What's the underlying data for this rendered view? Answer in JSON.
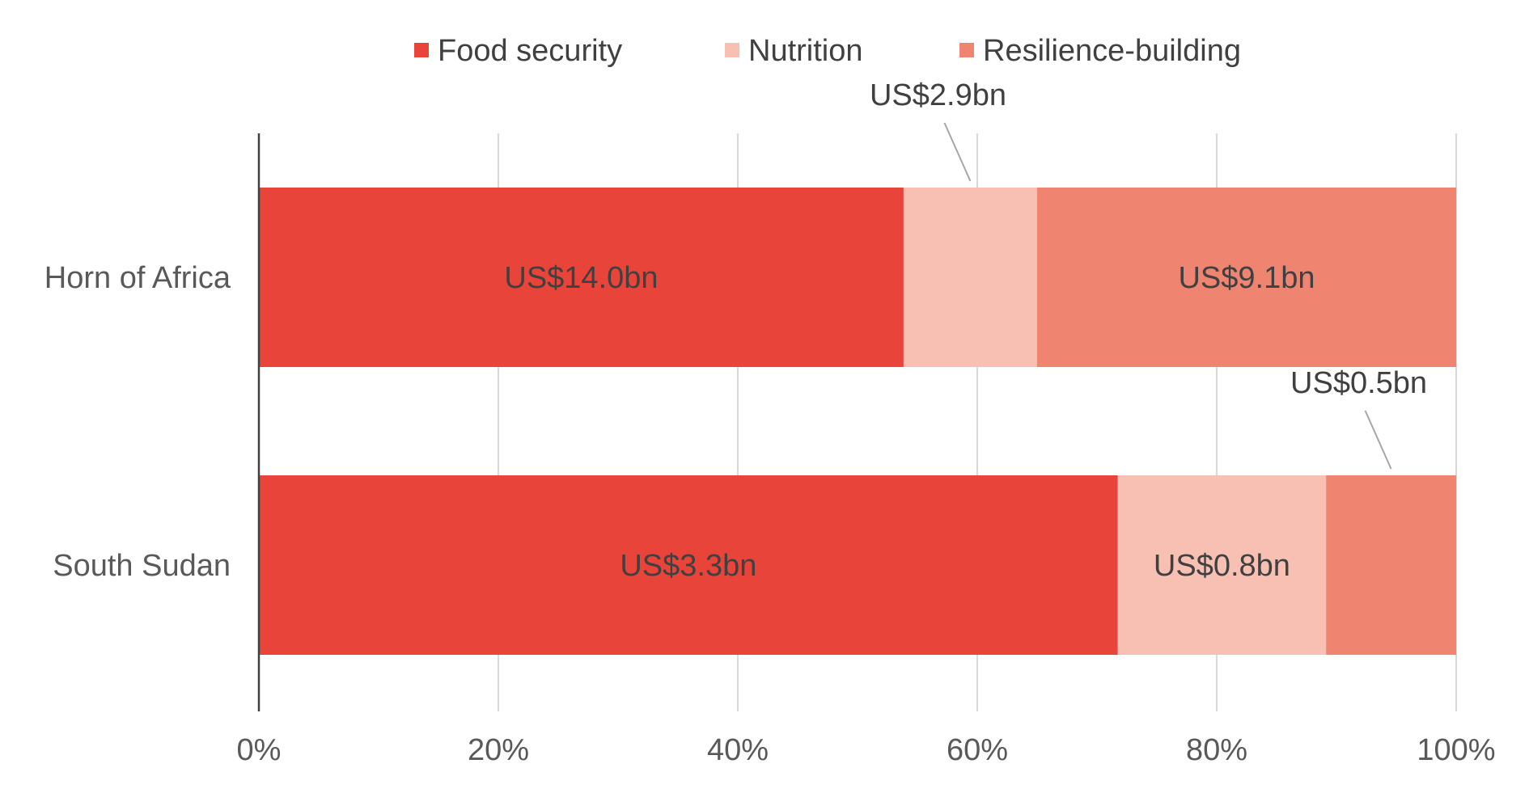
{
  "chart_data": {
    "type": "bar",
    "orientation": "horizontal",
    "stacked": "percent",
    "categories": [
      "Horn of Africa",
      "South Sudan"
    ],
    "series": [
      {
        "name": "Food security",
        "color": "#E8443A",
        "values": [
          14.0,
          3.3
        ],
        "labels": [
          "US$14.0bn",
          "US$3.3bn"
        ]
      },
      {
        "name": "Nutrition",
        "color": "#F8C0B2",
        "values": [
          2.9,
          0.8
        ],
        "labels": [
          "US$2.9bn",
          "US$0.8bn"
        ]
      },
      {
        "name": "Resilience-building",
        "color": "#EF8470",
        "values": [
          9.1,
          0.5
        ],
        "labels": [
          "US$9.1bn",
          "US$0.5bn"
        ]
      }
    ],
    "x_ticks": [
      "0%",
      "20%",
      "40%",
      "60%",
      "80%",
      "100%"
    ],
    "xlim": [
      0,
      100
    ],
    "grid": true,
    "legend_position": "top"
  }
}
